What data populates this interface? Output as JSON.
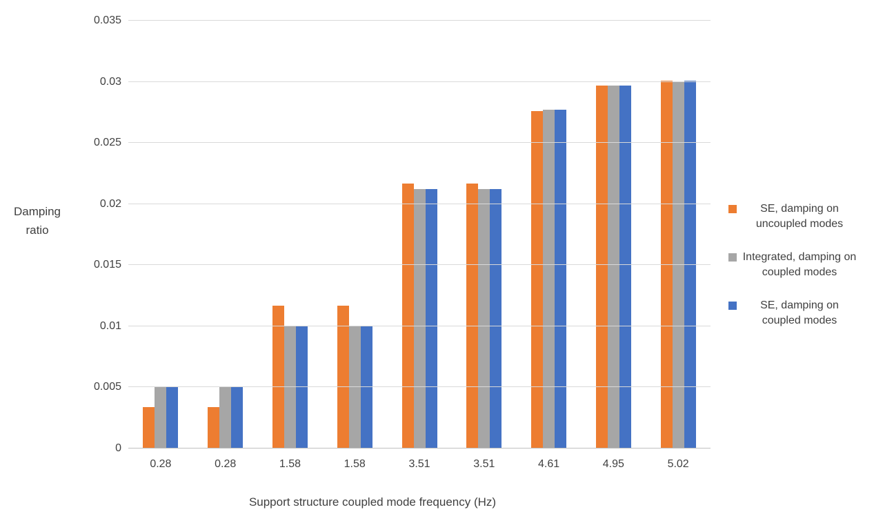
{
  "chart_data": {
    "type": "bar",
    "title": "",
    "xlabel": "Support structure coupled mode frequency (Hz)",
    "ylabel": "Damping ratio",
    "ylabel_lines": [
      "Damping",
      "ratio"
    ],
    "ylim": [
      0,
      0.035
    ],
    "ytick_step": 0.005,
    "yticks": [
      "0.035",
      "0.03",
      "0.025",
      "0.02",
      "0.015",
      "0.01",
      "0.005",
      "0"
    ],
    "grid": true,
    "legend_position": "right",
    "categories": [
      "0.28",
      "0.28",
      "1.58",
      "1.58",
      "3.51",
      "3.51",
      "4.61",
      "4.95",
      "5.02"
    ],
    "series": [
      {
        "name": "SE, damping on uncoupled modes",
        "color": "#ED7D31",
        "values": [
          0.0034,
          0.0034,
          0.0117,
          0.0117,
          0.0217,
          0.0217,
          0.0276,
          0.0297,
          0.0301
        ]
      },
      {
        "name": "Integrated, damping on coupled modes",
        "color": "#A6A6A6",
        "values": [
          0.005,
          0.005,
          0.01,
          0.01,
          0.0212,
          0.0212,
          0.0277,
          0.0297,
          0.03
        ]
      },
      {
        "name": "SE, damping on coupled modes",
        "color": "#4472C4",
        "values": [
          0.005,
          0.005,
          0.01,
          0.01,
          0.0212,
          0.0212,
          0.0277,
          0.0297,
          0.0301
        ]
      }
    ]
  }
}
